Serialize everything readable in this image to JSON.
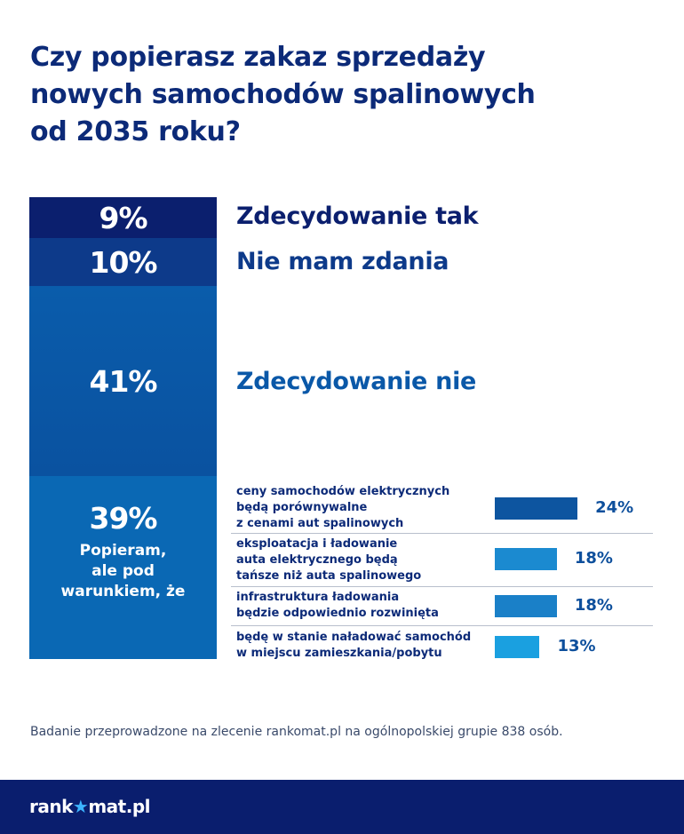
{
  "title_lines": [
    "Czy popierasz zakaz sprzedaży",
    "nowych samochodów spalinowych",
    "od 2035 roku?"
  ],
  "chart_data": {
    "type": "bar",
    "title": "Czy popierasz zakaz sprzedaży nowych samochodów spalinowych od 2035 roku?",
    "stacked": {
      "segments": [
        {
          "label": "Zdecydowanie tak",
          "value": 9,
          "display": "9%",
          "color": "#0b1f6e"
        },
        {
          "label": "Nie mam zdania",
          "value": 10,
          "display": "10%",
          "color": "#0d3a8a"
        },
        {
          "label": "Zdecydowanie nie",
          "value": 41,
          "display": "41%",
          "color": "#0a58a8"
        },
        {
          "label": "Popieram, ale pod warunkiem, że",
          "value": 39,
          "display": "39%",
          "color": "#0a68b4",
          "sub_lines": [
            "Popieram,",
            "ale pod",
            "warunkiem, że"
          ]
        }
      ]
    },
    "conditions": {
      "categories": [
        [
          "ceny samochodów elektrycznych",
          "będą porównywalne",
          "z cenami aut spalinowych"
        ],
        [
          "eksploatacja i ładowanie",
          "auta elektrycznego będą",
          "tańsze niż auta spalinowego"
        ],
        [
          "infrastruktura ładowania",
          "będzie odpowiednio rozwinięta"
        ],
        [
          "będę w stanie naładować samochód",
          "w miejscu zamieszkania/pobytu"
        ]
      ],
      "values": [
        24,
        18,
        18,
        13
      ],
      "display": [
        "24%",
        "18%",
        "18%",
        "13%"
      ],
      "colors": [
        "#0d55a0",
        "#1b8ad0",
        "#1a80c8",
        "#1aa0e0"
      ]
    }
  },
  "note": "Badanie przeprowadzone na zlecenie rankomat.pl na ogólnopolskiej grupie 838 osób.",
  "footer": {
    "logo_pre": "rank",
    "logo_star": "★",
    "logo_post": "mat.pl"
  }
}
